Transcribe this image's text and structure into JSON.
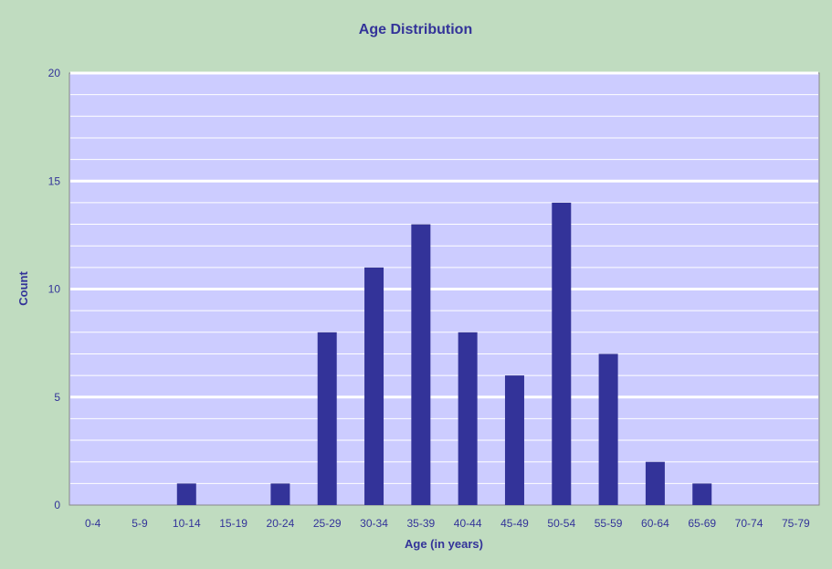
{
  "chart_data": {
    "type": "bar",
    "title": "Age Distribution",
    "xlabel": "Age (in years)",
    "ylabel": "Count",
    "categories": [
      "0-4",
      "5-9",
      "10-14",
      "15-19",
      "20-24",
      "25-29",
      "30-34",
      "35-39",
      "40-44",
      "45-49",
      "50-54",
      "55-59",
      "60-64",
      "65-69",
      "70-74",
      "75-79"
    ],
    "values": [
      0,
      0,
      1,
      0,
      1,
      8,
      11,
      13,
      8,
      6,
      14,
      7,
      2,
      1,
      0,
      0
    ],
    "ylim": [
      0,
      20
    ],
    "yticks": [
      0,
      5,
      10,
      15,
      20
    ],
    "grid": true,
    "colors": {
      "background": "#c0dcc0",
      "plot_area": "#ccccff",
      "bar": "#333399",
      "text": "#333399",
      "major_grid": "#ffffff",
      "minor_grid": "#ffffff"
    }
  }
}
